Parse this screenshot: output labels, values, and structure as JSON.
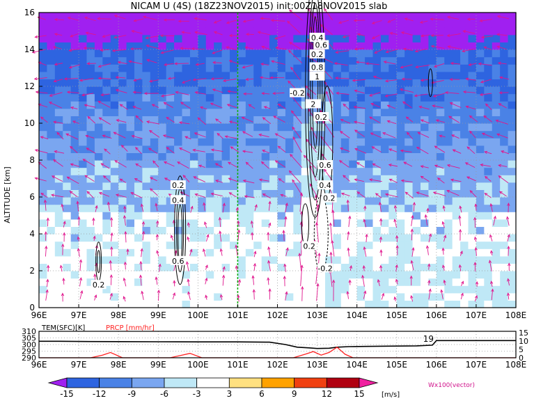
{
  "chart_data": [
    {
      "type": "heatmap",
      "title": "NICAM U (4S) (18Z23NOV2015) init:00Z18NOV2015 slab",
      "ylabel": "ALTITUDE [km]",
      "xlabel": "",
      "x_ticks": [
        "96E",
        "97E",
        "98E",
        "99E",
        "100E",
        "101E",
        "102E",
        "103E",
        "104E",
        "105E",
        "106E",
        "107E",
        "108E"
      ],
      "y_ticks": [
        "0",
        "2",
        "4",
        "6",
        "8",
        "10",
        "12",
        "14",
        "16"
      ],
      "xlim": [
        96,
        108
      ],
      "ylim": [
        0,
        16
      ],
      "vertical_marker_lon": 101,
      "contour_labels": [
        "0.2",
        "0.4",
        "0.6",
        "-0.2",
        "0.8",
        "1",
        "2",
        "0.6",
        "0.4",
        "0.2",
        "0.2",
        "-0.2",
        "0.2",
        "0.2",
        "0.4",
        "0.6",
        "0.2"
      ],
      "colorbar": {
        "levels": [
          "-15",
          "-12",
          "-9",
          "-6",
          "-3",
          "3",
          "6",
          "9",
          "12",
          "15"
        ],
        "unit": "[m/s]",
        "colors": [
          "#a020f0",
          "#2e64e0",
          "#4a82e6",
          "#7aa6f0",
          "#bfe8f6",
          "#ffffff",
          "#ffe080",
          "#ffa200",
          "#f04010",
          "#b00010",
          "#f020a0"
        ]
      },
      "vector_label": "Wx100(vector)",
      "vector_color": "#e0148c"
    },
    {
      "type": "line",
      "left_label": "TEM(SFC)[K]",
      "right_label": "PRCP [mm/hr]",
      "x_ticks": [
        "96E",
        "97E",
        "98E",
        "99E",
        "100E",
        "101E",
        "102E",
        "103E",
        "104E",
        "105E",
        "106E",
        "107E",
        "108E"
      ],
      "left_ticks": [
        "310",
        "305",
        "300",
        "295",
        "290"
      ],
      "right_ticks": [
        "15",
        "10",
        "5",
        "0"
      ],
      "series": [
        {
          "name": "TEM(SFC)[K]",
          "color": "#000000",
          "x": [
            96,
            96.5,
            97,
            98,
            99,
            100,
            101,
            101.8,
            102.2,
            102.5,
            102.8,
            103.0,
            103.3,
            103.5,
            103.8,
            104.2,
            104.8,
            105.5,
            105.9,
            106.0,
            107,
            108
          ],
          "y": [
            302.5,
            302.5,
            302.3,
            302.2,
            302.1,
            302.0,
            302.0,
            301.8,
            300.0,
            298.0,
            297.5,
            297.0,
            297.2,
            298.0,
            298.4,
            298.6,
            298.8,
            299.0,
            299.5,
            303.0,
            303.0,
            303.0
          ]
        },
        {
          "name": "PRCP [mm/hr]",
          "color": "#ff2020",
          "x": [
            96,
            97.3,
            97.6,
            97.8,
            98.1,
            99.3,
            99.6,
            99.8,
            100.1,
            102.4,
            102.7,
            102.9,
            103.1,
            103.3,
            103.5,
            103.7,
            103.9,
            108
          ],
          "y": [
            0,
            0,
            1.5,
            3,
            0,
            0,
            1.5,
            2.5,
            0,
            0,
            2,
            3.5,
            1.5,
            3,
            6,
            2,
            0,
            0
          ]
        }
      ],
      "annotation": "19"
    }
  ]
}
